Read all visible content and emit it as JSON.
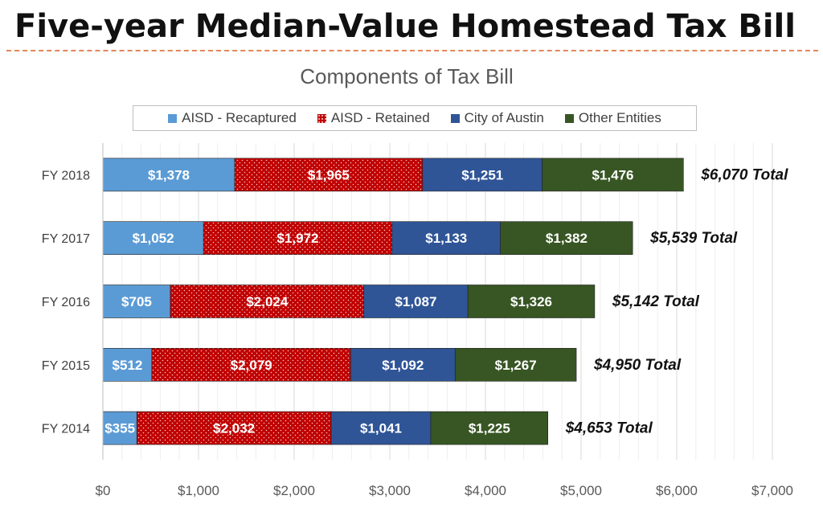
{
  "slide_title": "Five-year Median-Value Homestead Tax Bill",
  "chart_data": {
    "type": "bar",
    "orientation": "horizontal",
    "stacked": true,
    "title": "Components of Tax Bill",
    "xlabel": "",
    "ylabel": "",
    "xlim": [
      0,
      7000
    ],
    "xticks": [
      "$0",
      "$1,000",
      "$2,000",
      "$3,000",
      "$4,000",
      "$5,000",
      "$6,000",
      "$7,000"
    ],
    "grid": true,
    "legend_position": "top",
    "categories": [
      "FY 2018",
      "FY 2017",
      "FY 2016",
      "FY 2015",
      "FY 2014"
    ],
    "series": [
      {
        "name": "AISD - Recaptured",
        "color": "#5b9bd5",
        "pattern": "solid",
        "values": [
          1378,
          1052,
          705,
          512,
          355
        ],
        "labels": [
          "$1,378",
          "$1,052",
          "$705",
          "$512",
          "$355"
        ]
      },
      {
        "name": "AISD - Retained",
        "color": "#c00000",
        "pattern": "dotted",
        "values": [
          1965,
          1972,
          2024,
          2079,
          2032
        ],
        "labels": [
          "$1,965",
          "$1,972",
          "$2,024",
          "$2,079",
          "$2,032"
        ]
      },
      {
        "name": "City of Austin",
        "color": "#2f5597",
        "pattern": "solid",
        "values": [
          1251,
          1133,
          1087,
          1092,
          1041
        ],
        "labels": [
          "$1,251",
          "$1,133",
          "$1,087",
          "$1,092",
          "$1,041"
        ]
      },
      {
        "name": "Other Entities",
        "color": "#375623",
        "pattern": "solid",
        "values": [
          1476,
          1382,
          1326,
          1267,
          1225
        ],
        "labels": [
          "$1,476",
          "$1,382",
          "$1,326",
          "$1,267",
          "$1,225"
        ]
      }
    ],
    "totals": [
      6070,
      5539,
      5142,
      4950,
      4653
    ],
    "total_labels": [
      "$6,070 Total",
      "$5,539 Total",
      "$5,142 Total",
      "$4,950 Total",
      "$4,653 Total"
    ]
  }
}
